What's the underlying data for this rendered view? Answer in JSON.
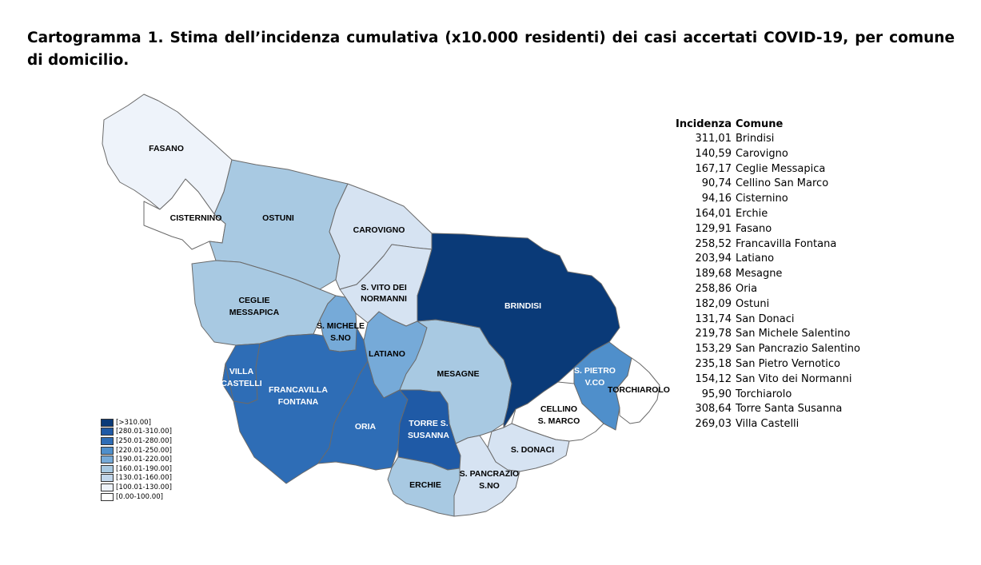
{
  "title": "Cartogramma 1. Stima dell’incidenza cumulativa (x10.000 residenti) dei casi accertati COVID-19, per comune di domicilio.",
  "colors": {
    "c0": "#ffffff",
    "c1": "#eef3fa",
    "c2": "#d6e3f2",
    "c3": "#c2d7ec",
    "c4": "#a8c9e2",
    "c5": "#76aad8",
    "c6": "#4f8fcb",
    "c7": "#2e6db6",
    "c8": "#1f5aa6",
    "c9": "#0a3a78"
  },
  "legend": [
    {
      "label": "[>310.00]",
      "color": "#0a3a78"
    },
    {
      "label": "[280.01-310.00]",
      "color": "#1f5aa6"
    },
    {
      "label": "[250.01-280.00]",
      "color": "#2e6db6"
    },
    {
      "label": "[220.01-250.00]",
      "color": "#4f8fcb"
    },
    {
      "label": "[190.01-220.00]",
      "color": "#76aad8"
    },
    {
      "label": "[160.01-190.00]",
      "color": "#a8c9e2"
    },
    {
      "label": "[130.01-160.00]",
      "color": "#c2d7ec"
    },
    {
      "label": "[100.01-130.00]",
      "color": "#eef3fa"
    },
    {
      "label": "[0.00-100.00]",
      "color": "#ffffff"
    }
  ],
  "map_labels": {
    "fasano": "FASANO",
    "cisternino": "CISTERNINO",
    "ostuni": "OSTUNI",
    "carovigno": "CAROVIGNO",
    "svito_1": "S. VITO DEI",
    "svito_2": "NORMANNI",
    "ceglie_1": "CEGLIE",
    "ceglie_2": "MESSAPICA",
    "smichele_1": "S. MICHELE",
    "smichele_2": "S.NO",
    "brindisi": "BRINDISI",
    "latiano": "LATIANO",
    "mesagne": "MESAGNE",
    "villa_1": "VILLA",
    "villa_2": "CASTELLI",
    "francavilla_1": "FRANCAVILLA",
    "francavilla_2": "FONTANA",
    "oria": "ORIA",
    "torre_1": "TORRE S.",
    "torre_2": "SUSANNA",
    "spietro_1": "S. PIETRO",
    "spietro_2": "V.CO",
    "torchiarolo": "TORCHIAROLO",
    "cellino_1": "CELLINO",
    "cellino_2": "S. MARCO",
    "sdonaci": "S. DONACI",
    "spancrazio_1": "S. PANCRAZIO",
    "spancrazio_2": "S.NO",
    "erchie": "ERCHIE"
  },
  "table": {
    "headers": [
      "Incidenza",
      "Comune"
    ],
    "rows": [
      [
        "311,01",
        "Brindisi"
      ],
      [
        "140,59",
        "Carovigno"
      ],
      [
        "167,17",
        "Ceglie Messapica"
      ],
      [
        "90,74",
        "Cellino San Marco"
      ],
      [
        "94,16",
        "Cisternino"
      ],
      [
        "164,01",
        "Erchie"
      ],
      [
        "129,91",
        "Fasano"
      ],
      [
        "258,52",
        "Francavilla Fontana"
      ],
      [
        "203,94",
        "Latiano"
      ],
      [
        "189,68",
        "Mesagne"
      ],
      [
        "258,86",
        "Oria"
      ],
      [
        "182,09",
        "Ostuni"
      ],
      [
        "131,74",
        "San Donaci"
      ],
      [
        "219,78",
        "San Michele Salentino"
      ],
      [
        "153,29",
        "San Pancrazio Salentino"
      ],
      [
        "235,18",
        "San Pietro Vernotico"
      ],
      [
        "154,12",
        "San Vito dei Normanni"
      ],
      [
        "95,90",
        "Torchiarolo"
      ],
      [
        "308,64",
        "Torre Santa Susanna"
      ],
      [
        "269,03",
        "Villa Castelli"
      ]
    ]
  }
}
